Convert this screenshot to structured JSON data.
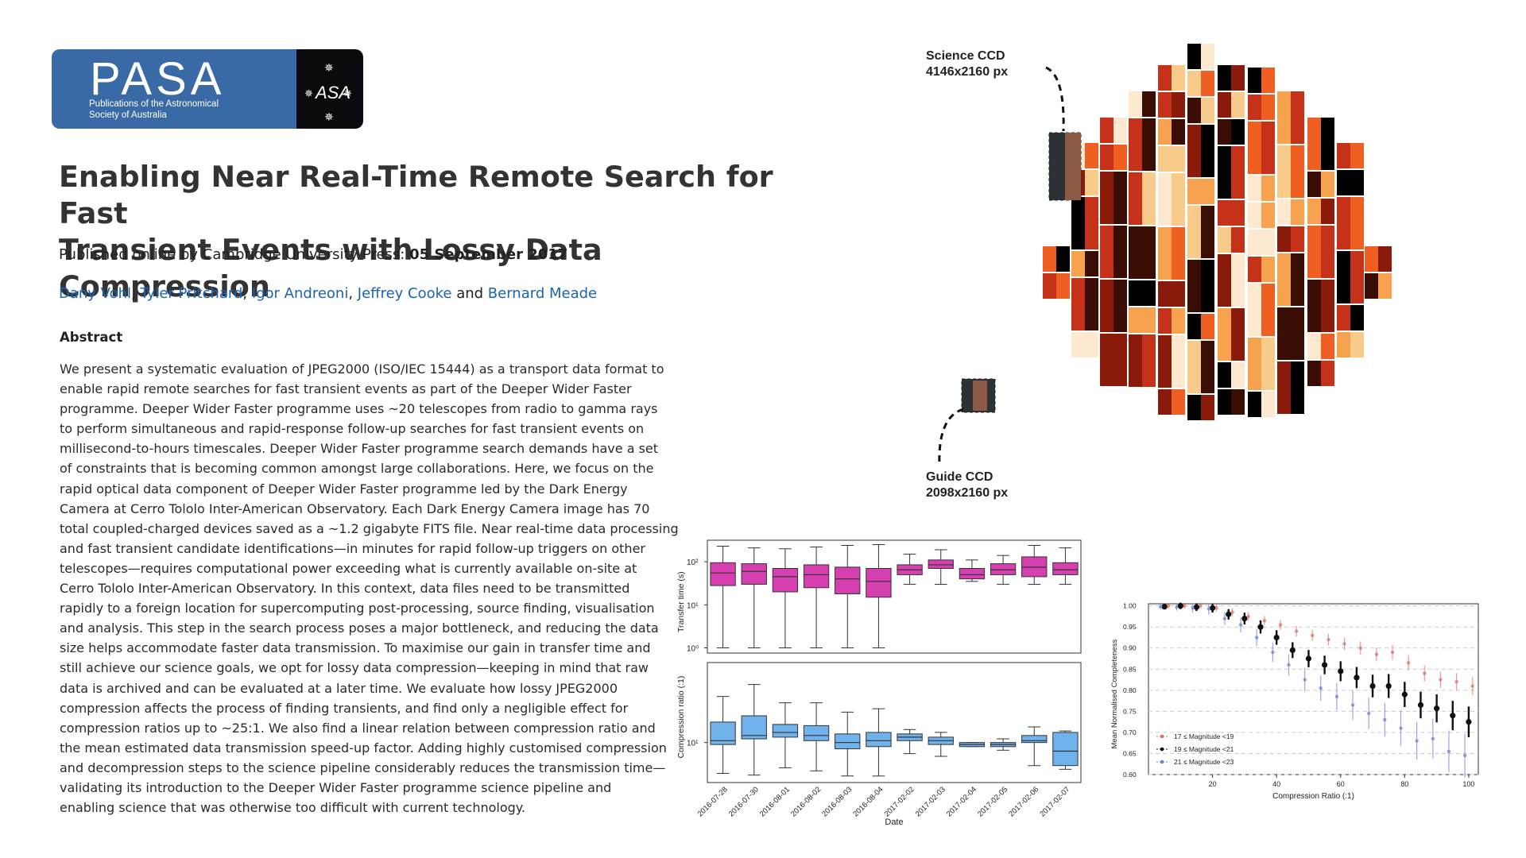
{
  "logo": {
    "name": "PASA",
    "subtitle_line1": "Publications of the Astronomical",
    "subtitle_line2": "Society of Australia",
    "emblem": "asa-star-emblem-icon"
  },
  "paper": {
    "title_line1": "Enabling Near Real-Time Remote Search for Fast",
    "title_line2": "Transient Events with Lossy Data Compression",
    "published_prefix": "Published online by Cambridge University Press: ",
    "published_date": "05 September 2017",
    "authors": [
      "Dany Vohl",
      "Tyler Pritchard",
      "Igor Andreoni",
      "Jeffrey Cooke",
      "Bernard Meade"
    ],
    "author_sep": ", ",
    "author_and": " and ",
    "abstract_heading": "Abstract",
    "abstract_lines": [
      "We present a systematic evaluation of JPEG2000 (ISO/IEC 15444) as a transport data format to",
      "enable rapid remote searches for fast transient events as part of the Deeper Wider Faster",
      "programme. Deeper Wider Faster programme uses ~20 telescopes from radio to gamma rays",
      "to perform simultaneous and rapid-response follow-up searches for fast transient events on",
      "millisecond-to-hours timescales. Deeper Wider Faster programme search demands have a set",
      "of constraints that is becoming common amongst large collaborations. Here, we focus on the",
      "rapid optical data component of Deeper Wider Faster programme led by the Dark Energy",
      "Camera at Cerro Tololo Inter-American Observatory. Each Dark Energy Camera image has 70",
      "total coupled-charged devices saved as a ~1.2 gigabyte FITS file. Near real-time data processing",
      "and fast transient candidate identifications—in minutes for rapid follow-up triggers on other",
      "telescopes—requires computational power exceeding what is currently available on-site at",
      "Cerro Tololo Inter-American Observatory. In this context, data files need to be transmitted",
      "rapidly to a foreign location for supercomputing post-processing, source finding, visualisation",
      "and analysis. This step in the search process poses a major bottleneck, and reducing the data",
      "size helps accommodate faster data transmission. To maximise our gain in transfer time and",
      "still achieve our science goals, we opt for lossy data compression—keeping in mind that raw",
      "data is archived and can be evaluated at a later time. We evaluate how lossy JPEG2000",
      "compression affects the process of finding transients, and find only a negligible effect for",
      "compression ratios up to ~25:1. We also find a linear relation between compression ratio and",
      "the mean estimated data transmission speed-up factor. Adding highly customised compression",
      "and decompression steps to the science pipeline considerably reduces the transmission time—",
      "validating its introduction to the Deeper Wider Faster programme science pipeline and",
      "enabling science that was otherwise too difficult with current technology."
    ]
  },
  "detector": {
    "science_label": "Science CCD",
    "science_size": "4146x2160 px",
    "guide_label": "Guide CCD",
    "guide_size": "2098x2160 px"
  },
  "colors": {
    "brand_blue": "#3a6aa6",
    "link_blue": "#1a63b5",
    "box_magenta": "#d63fb0",
    "box_blue": "#6fb2ec",
    "ccd_palette": [
      "#000000",
      "#3a0d04",
      "#8a1a0a",
      "#c6311a",
      "#ef5f22",
      "#f7a24f",
      "#f9cb8a",
      "#fde8d0"
    ]
  },
  "chart_data": [
    {
      "type": "box",
      "panel": "top",
      "ylabel": "Transfer time (s)",
      "yscale": "log",
      "yticks": [
        "10⁰",
        "10¹",
        "10²"
      ],
      "categories": [
        "2016-07-28",
        "2016-07-30",
        "2016-08-01",
        "2016-08-02",
        "2016-08-03",
        "2016-08-04",
        "2017-02-02",
        "2017-02-03",
        "2017-02-04",
        "2017-02-05",
        "2017-02-06",
        "2017-02-07"
      ],
      "boxes": [
        {
          "min": 1,
          "q1": 28,
          "median": 55,
          "q3": 95,
          "max": 230
        },
        {
          "min": 1,
          "q1": 30,
          "median": 60,
          "q3": 90,
          "max": 210
        },
        {
          "min": 1,
          "q1": 20,
          "median": 45,
          "q3": 70,
          "max": 200
        },
        {
          "min": 1,
          "q1": 25,
          "median": 50,
          "q3": 85,
          "max": 220
        },
        {
          "min": 1,
          "q1": 18,
          "median": 40,
          "q3": 75,
          "max": 240
        },
        {
          "min": 1,
          "q1": 15,
          "median": 35,
          "q3": 70,
          "max": 250
        },
        {
          "min": 30,
          "q1": 50,
          "median": 65,
          "q3": 85,
          "max": 150
        },
        {
          "min": 30,
          "q1": 70,
          "median": 85,
          "q3": 110,
          "max": 190
        },
        {
          "min": 35,
          "q1": 40,
          "median": 50,
          "q3": 70,
          "max": 110
        },
        {
          "min": 30,
          "q1": 50,
          "median": 65,
          "q3": 90,
          "max": 140
        },
        {
          "min": 30,
          "q1": 45,
          "median": 75,
          "q3": 130,
          "max": 240
        },
        {
          "min": 30,
          "q1": 50,
          "median": 65,
          "q3": 95,
          "max": 210
        }
      ]
    },
    {
      "type": "box",
      "panel": "bottom",
      "ylabel": "Compression ratio (:1)",
      "xlabel": "Date",
      "yscale": "log",
      "yticks": [
        "10¹"
      ],
      "categories": [
        "2016-07-28",
        "2016-07-30",
        "2016-08-01",
        "2016-08-02",
        "2016-08-03",
        "2016-08-04",
        "2017-02-02",
        "2017-02-03",
        "2017-02-04",
        "2017-02-05",
        "2017-02-06",
        "2017-02-07"
      ],
      "boxes": [
        {
          "min": 4.5,
          "q1": 9.5,
          "median": 10.5,
          "q3": 17,
          "max": 33
        },
        {
          "min": 4.3,
          "q1": 11,
          "median": 12,
          "q3": 20,
          "max": 45
        },
        {
          "min": 5.2,
          "q1": 11.5,
          "median": 13,
          "q3": 16,
          "max": 28
        },
        {
          "min": 4.8,
          "q1": 10.5,
          "median": 12,
          "q3": 15.5,
          "max": 28
        },
        {
          "min": 4.2,
          "q1": 8.5,
          "median": 10,
          "q3": 12.5,
          "max": 22
        },
        {
          "min": 4.2,
          "q1": 9,
          "median": 10.5,
          "q3": 13,
          "max": 24
        },
        {
          "min": 7.5,
          "q1": 10.5,
          "median": 11.5,
          "q3": 12.5,
          "max": 14
        },
        {
          "min": 7.0,
          "q1": 9.5,
          "median": 10.5,
          "q3": 11.5,
          "max": 13
        },
        {
          "min": 9,
          "q1": 9,
          "median": 9.5,
          "q3": 10,
          "max": 10
        },
        {
          "min": 8.2,
          "q1": 9,
          "median": 9.5,
          "q3": 10,
          "max": 11
        },
        {
          "min": 5.5,
          "q1": 10,
          "median": 10.5,
          "q3": 12,
          "max": 15
        },
        {
          "min": 5.0,
          "q1": 5.5,
          "median": 8,
          "q3": 13,
          "max": 13.5
        }
      ]
    },
    {
      "type": "scatter",
      "xlabel": "Compression Ratio (:1)",
      "ylabel": "Mean Normalised Completeness",
      "xlim": [
        0,
        103
      ],
      "ylim": [
        0.6,
        1.005
      ],
      "xticks": [
        20,
        40,
        60,
        80,
        100
      ],
      "yticks": [
        0.6,
        0.65,
        0.7,
        0.75,
        0.8,
        0.85,
        0.9,
        0.95,
        1.0
      ],
      "grid": true,
      "legend_position": "bottom-left",
      "x": [
        5,
        10,
        15,
        20,
        25,
        30,
        35,
        40,
        45,
        50,
        55,
        60,
        65,
        70,
        75,
        80,
        85,
        90,
        95,
        100
      ],
      "series": [
        {
          "name": "17 ≤ Magnitude <19",
          "color": "#e07070",
          "values": [
            1.0,
            1.0,
            1.0,
            0.995,
            0.985,
            0.975,
            0.965,
            0.955,
            0.94,
            0.93,
            0.92,
            0.91,
            0.9,
            0.885,
            0.89,
            0.865,
            0.84,
            0.825,
            0.82,
            0.81
          ]
        },
        {
          "name": "19 ≤ Magnitude <21",
          "color": "#111111",
          "values": [
            0.998,
            1.0,
            0.997,
            0.995,
            0.98,
            0.97,
            0.95,
            0.925,
            0.895,
            0.875,
            0.86,
            0.845,
            0.83,
            0.81,
            0.81,
            0.79,
            0.765,
            0.757,
            0.74,
            0.725
          ]
        },
        {
          "name": "21 ≤ Magnitude <23",
          "color": "#6f82d8",
          "values": [
            0.998,
            0.997,
            0.995,
            0.993,
            0.97,
            0.955,
            0.925,
            0.89,
            0.86,
            0.825,
            0.805,
            0.785,
            0.765,
            0.745,
            0.73,
            0.71,
            0.68,
            0.685,
            0.655,
            0.645
          ]
        }
      ]
    }
  ]
}
